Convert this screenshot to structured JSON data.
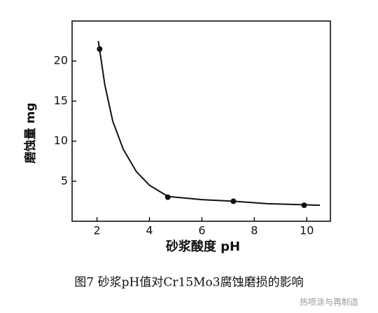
{
  "chart_data": {
    "type": "line",
    "x_label": "砂浆酸度 pH",
    "y_label": "磨蚀量 mg",
    "caption": "图7  砂浆pH值对Cr15Mo3腐蚀磨损的影响",
    "watermark": "热喷涂与再制造",
    "color": "#111111",
    "xlim": [
      1.05,
      10.9
    ],
    "xticks": [
      2,
      4,
      6,
      8,
      10
    ],
    "ylim": [
      0,
      25
    ],
    "yticks": [
      5,
      10,
      15,
      20
    ],
    "curve": {
      "x": [
        2.05,
        2.3,
        2.6,
        3,
        3.5,
        4,
        4.7,
        6,
        7.2,
        8.5,
        10.5
      ],
      "values": [
        22.5,
        17,
        12.5,
        9,
        6.2,
        4.5,
        3.1,
        2.7,
        2.5,
        2.2,
        2.0
      ]
    },
    "points": {
      "x": [
        2.1,
        4.7,
        7.2,
        9.9
      ],
      "values": [
        21.5,
        3.0,
        2.5,
        2.0
      ]
    }
  }
}
